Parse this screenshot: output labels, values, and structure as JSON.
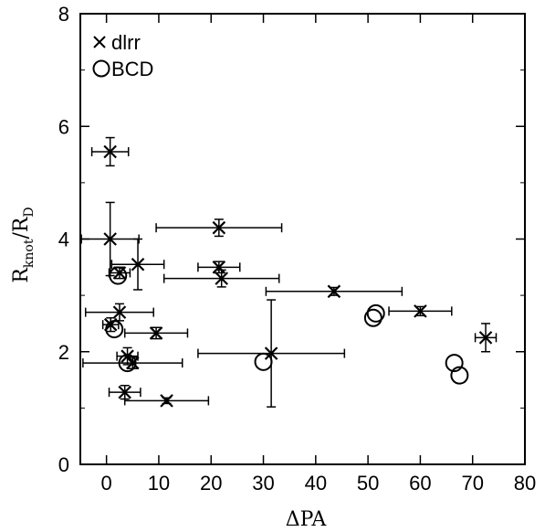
{
  "chart_data": {
    "type": "scatter",
    "xlabel": "ΔPA",
    "ylabel_main": "R",
    "ylabel_sub1": "knot",
    "ylabel_mid": "/R",
    "ylabel_sub2": "D",
    "xlim": [
      -5,
      80
    ],
    "ylim": [
      0,
      8
    ],
    "xticks": [
      0,
      10,
      20,
      30,
      40,
      50,
      60,
      70,
      80
    ],
    "yticks": [
      0,
      2,
      4,
      6,
      8
    ],
    "grid": false,
    "legend_position": "top-left",
    "series": [
      {
        "name": "dlrr",
        "marker": "cross",
        "points": [
          {
            "x": 0.7,
            "y": 5.55,
            "xerr": [
              3.5,
              3.5
            ],
            "yerr": [
              0.25,
              0.25
            ]
          },
          {
            "x": 0.7,
            "y": 4.0,
            "xerr": [
              5.5,
              5.5
            ],
            "yerr": [
              0.65,
              0.65
            ]
          },
          {
            "x": 6.0,
            "y": 3.55,
            "xerr": [
              5.0,
              5.0
            ],
            "yerr": [
              0.45,
              0.45
            ]
          },
          {
            "x": 2.5,
            "y": 3.4,
            "xerr": [
              2.0,
              2.0
            ],
            "yerr": [
              0.1,
              0.1
            ]
          },
          {
            "x": 21.5,
            "y": 4.2,
            "xerr": [
              12.0,
              12.0
            ],
            "yerr": [
              0.15,
              0.15
            ]
          },
          {
            "x": 21.5,
            "y": 3.5,
            "xerr": [
              4.0,
              4.0
            ],
            "yerr": [
              0.1,
              0.1
            ]
          },
          {
            "x": 22.0,
            "y": 3.3,
            "xerr": [
              11.0,
              11.0
            ],
            "yerr": [
              0.15,
              0.15
            ]
          },
          {
            "x": 43.5,
            "y": 3.07,
            "xerr": [
              13.0,
              13.0
            ],
            "yerr": [
              0.07,
              0.07
            ]
          },
          {
            "x": 60.0,
            "y": 2.72,
            "xerr": [
              6.0,
              6.0
            ],
            "yerr": [
              0.08,
              0.08
            ]
          },
          {
            "x": 72.5,
            "y": 2.25,
            "xerr": [
              2.0,
              2.0
            ],
            "yerr": [
              0.25,
              0.25
            ]
          },
          {
            "x": 2.5,
            "y": 2.7,
            "xerr": [
              6.5,
              6.5
            ],
            "yerr": [
              0.15,
              0.15
            ]
          },
          {
            "x": 0.8,
            "y": 2.48,
            "xerr": [
              1.5,
              1.5
            ],
            "yerr": [
              0.12,
              0.12
            ]
          },
          {
            "x": 9.5,
            "y": 2.33,
            "xerr": [
              6.0,
              6.0
            ],
            "yerr": [
              0.1,
              0.1
            ]
          },
          {
            "x": 4.0,
            "y": 1.92,
            "xerr": [
              2.0,
              2.0
            ],
            "yerr": [
              0.15,
              0.15
            ]
          },
          {
            "x": 5.0,
            "y": 1.8,
            "xerr": [
              9.5,
              9.5
            ],
            "yerr": [
              0.1,
              0.1
            ]
          },
          {
            "x": 31.5,
            "y": 1.97,
            "xerr": [
              14.0,
              14.0
            ],
            "yerr": [
              0.95,
              0.95
            ]
          },
          {
            "x": 3.5,
            "y": 1.28,
            "xerr": [
              3.0,
              3.0
            ],
            "yerr": [
              0.12,
              0.12
            ]
          },
          {
            "x": 11.5,
            "y": 1.13,
            "xerr": [
              8.0,
              8.0
            ],
            "yerr": [
              0.05,
              0.05
            ]
          }
        ]
      },
      {
        "name": "BCD",
        "marker": "circle",
        "points": [
          {
            "x": 2.2,
            "y": 3.35
          },
          {
            "x": 1.5,
            "y": 2.4
          },
          {
            "x": 4.0,
            "y": 1.8
          },
          {
            "x": 30.0,
            "y": 1.82
          },
          {
            "x": 51.0,
            "y": 2.6
          },
          {
            "x": 51.5,
            "y": 2.68
          },
          {
            "x": 66.5,
            "y": 1.8
          },
          {
            "x": 67.5,
            "y": 1.58
          }
        ]
      }
    ]
  },
  "legend": {
    "items": [
      {
        "label": "dlrr"
      },
      {
        "label": "BCD"
      }
    ]
  }
}
